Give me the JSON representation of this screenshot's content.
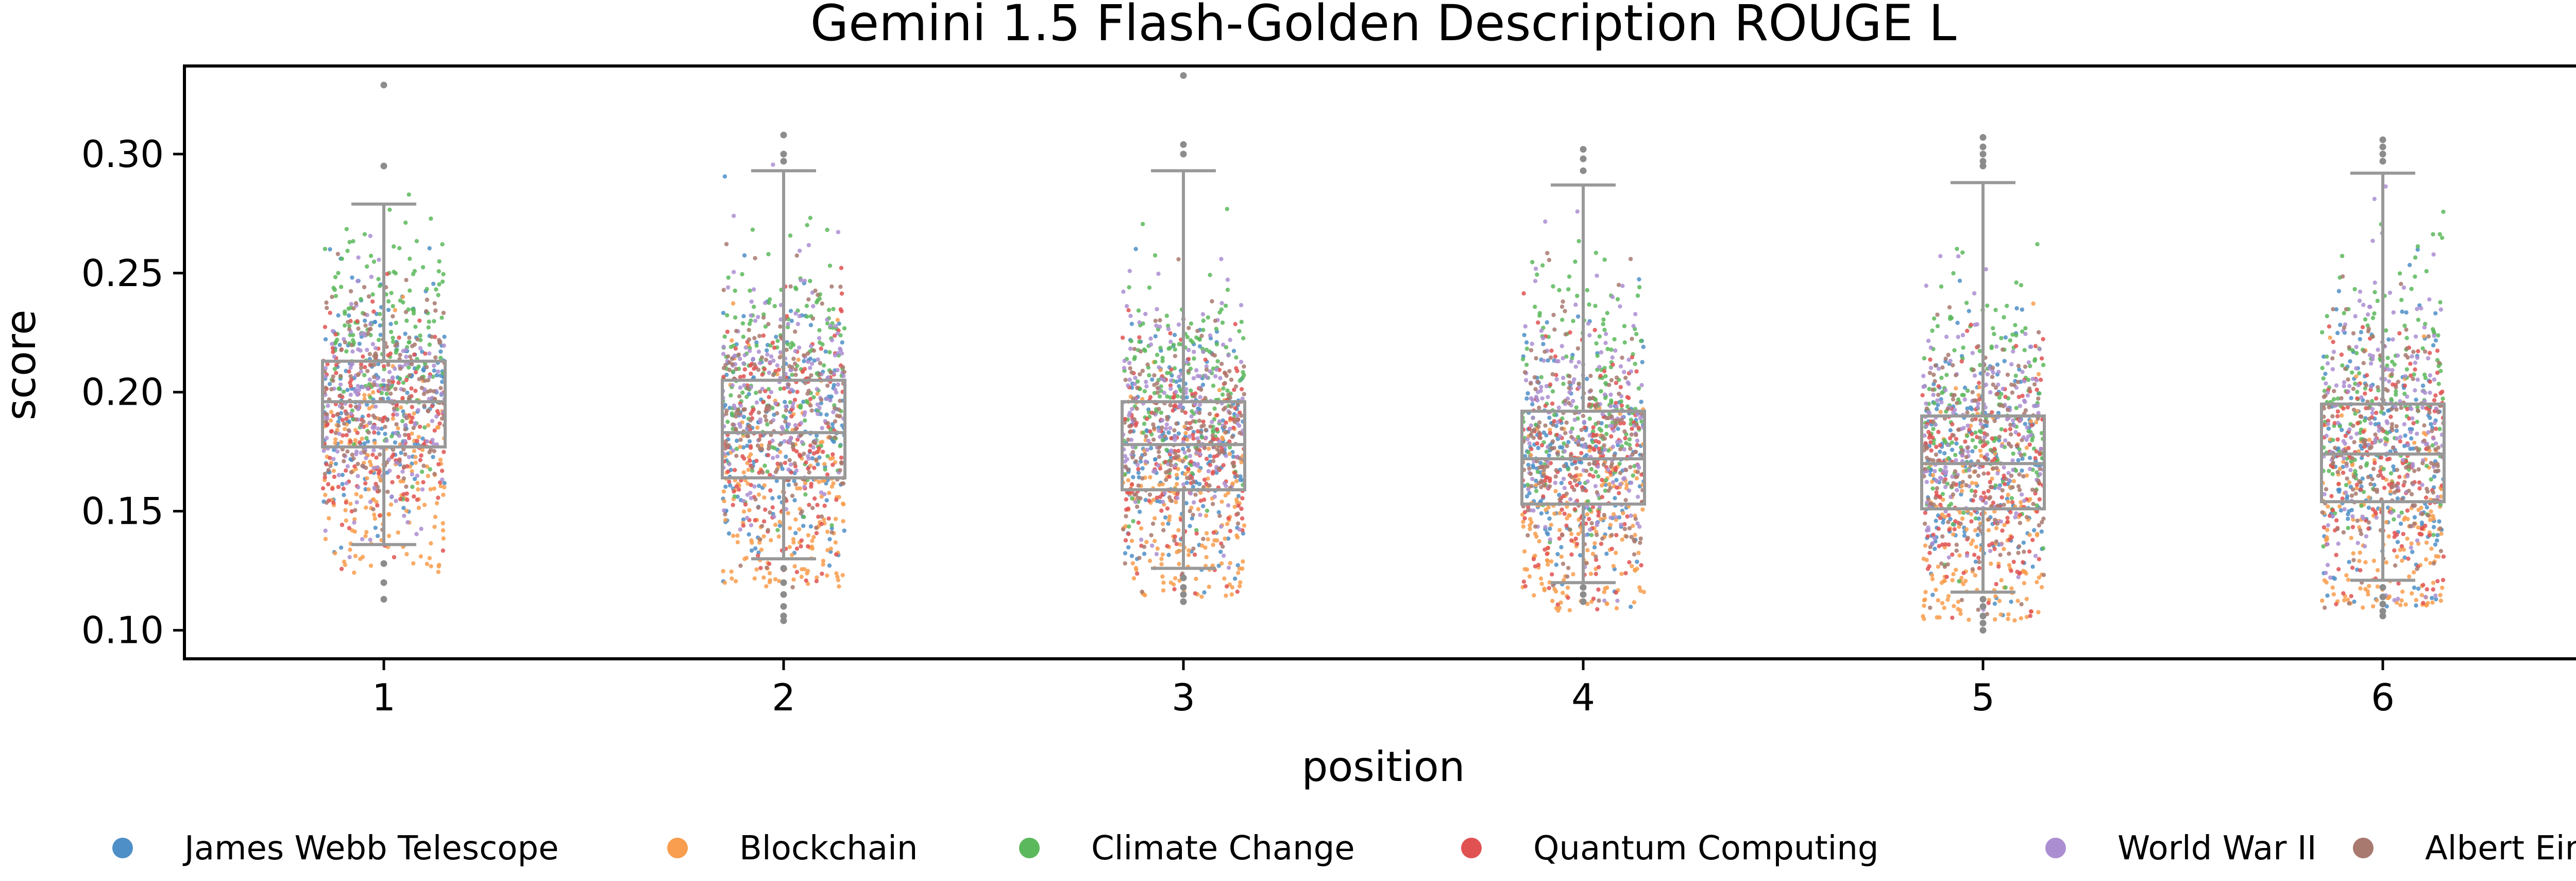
{
  "chart_data": {
    "type": "box+strip",
    "title": "Gemini 1.5 Flash-Golden Description ROUGE L",
    "xlabel": "position",
    "ylabel": "score",
    "categories": [
      "1",
      "2",
      "3",
      "4",
      "5",
      "6"
    ],
    "yticks": [
      "0.10",
      "0.15",
      "0.20",
      "0.25",
      "0.30"
    ],
    "ylim": [
      0.088,
      0.337
    ],
    "grid": false,
    "legend_position": "bottom",
    "box_color": "#999999",
    "boxes": [
      {
        "category": "1",
        "whisker_low": 0.136,
        "q1": 0.177,
        "median": 0.196,
        "q3": 0.213,
        "whisker_high": 0.279,
        "outliers": [
          0.329,
          0.295,
          0.128,
          0.12,
          0.113
        ]
      },
      {
        "category": "2",
        "whisker_low": 0.13,
        "q1": 0.164,
        "median": 0.183,
        "q3": 0.205,
        "whisker_high": 0.293,
        "outliers": [
          0.308,
          0.3,
          0.297,
          0.126,
          0.12,
          0.115,
          0.11,
          0.106,
          0.104
        ]
      },
      {
        "category": "3",
        "whisker_low": 0.126,
        "q1": 0.159,
        "median": 0.178,
        "q3": 0.196,
        "whisker_high": 0.293,
        "outliers": [
          0.333,
          0.304,
          0.3,
          0.122,
          0.118,
          0.115,
          0.112
        ]
      },
      {
        "category": "4",
        "whisker_low": 0.12,
        "q1": 0.153,
        "median": 0.172,
        "q3": 0.192,
        "whisker_high": 0.287,
        "outliers": [
          0.302,
          0.298,
          0.293,
          0.118,
          0.115,
          0.112
        ]
      },
      {
        "category": "5",
        "whisker_low": 0.116,
        "q1": 0.151,
        "median": 0.17,
        "q3": 0.19,
        "whisker_high": 0.288,
        "outliers": [
          0.307,
          0.303,
          0.3,
          0.297,
          0.295,
          0.113,
          0.11,
          0.106,
          0.103,
          0.1
        ]
      },
      {
        "category": "6",
        "whisker_low": 0.121,
        "q1": 0.154,
        "median": 0.174,
        "q3": 0.195,
        "whisker_high": 0.292,
        "outliers": [
          0.306,
          0.303,
          0.3,
          0.297,
          0.118,
          0.114,
          0.111,
          0.108,
          0.106
        ]
      }
    ],
    "series": [
      {
        "name": "James Webb Telescope",
        "color": "#4e8fc7"
      },
      {
        "name": "Blockchain",
        "color": "#f89e4e"
      },
      {
        "name": "Climate Change",
        "color": "#5cb85c"
      },
      {
        "name": "Quantum Computing",
        "color": "#e05252"
      },
      {
        "name": "World War II",
        "color": "#ab8ed1"
      },
      {
        "name": "Albert Einstein",
        "color": "#a8796f"
      }
    ]
  }
}
